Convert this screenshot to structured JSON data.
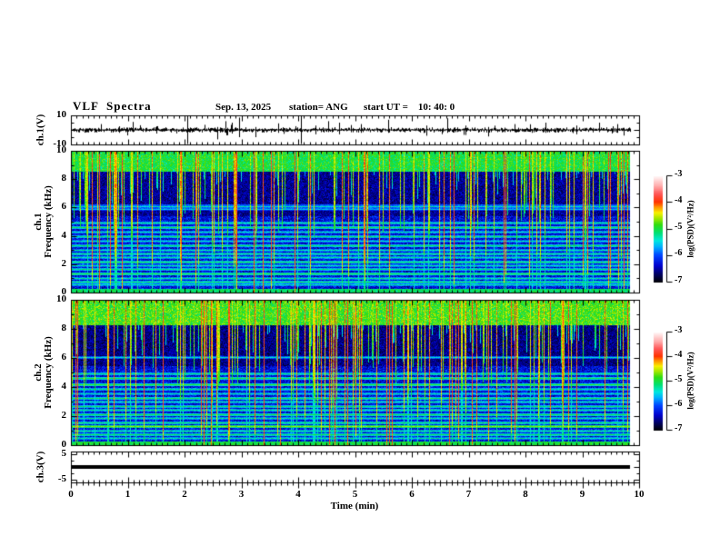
{
  "title": {
    "main": "VLF  Spectra",
    "date": "Sep. 13, 2025",
    "station": "station= ANG",
    "start_ut": "start UT =    10: 40: 0"
  },
  "x_axis": {
    "label": "Time  (min)",
    "ticks": [
      "0",
      "1",
      "2",
      "3",
      "4",
      "5",
      "6",
      "7",
      "8",
      "9",
      "10"
    ],
    "range_min": [
      0,
      10
    ],
    "minor_tick_interval_min": 0.1
  },
  "panels": {
    "ch1_wave": {
      "ylabel": "ch.1(V)",
      "ytick_top": "10",
      "ytick_bottom": "-10"
    },
    "spec1": {
      "ylabel_line1": "ch.1",
      "ylabel_line2": "Frequency (kHz)",
      "yticks": [
        "10",
        "8",
        "6",
        "4",
        "2",
        "0"
      ]
    },
    "spec2": {
      "ylabel_line1": "ch.2",
      "ylabel_line2": "Frequency (kHz)",
      "yticks": [
        "10",
        "8",
        "6",
        "4",
        "2",
        "0"
      ]
    },
    "ch3_wave": {
      "ylabel": "ch.3(V)",
      "ytick_top": "5",
      "ytick_bottom": "-5"
    }
  },
  "colorbars": {
    "label": "log(PSD)(V²/Hz)",
    "ticks": [
      "-3",
      "-4",
      "-5",
      "-6",
      "-7"
    ],
    "range": [
      -7,
      -3
    ]
  },
  "colors": {
    "foreground": "#000000",
    "background": "#ffffff",
    "colormap": [
      [
        -7.0,
        "#000006"
      ],
      [
        -6.75,
        "#000055"
      ],
      [
        -6.4,
        "#0000cc"
      ],
      [
        -6.0,
        "#0044ff"
      ],
      [
        -5.7,
        "#00aaff"
      ],
      [
        -5.45,
        "#00e8e0"
      ],
      [
        -5.15,
        "#00e070"
      ],
      [
        -4.85,
        "#30dd10"
      ],
      [
        -4.6,
        "#a8e800"
      ],
      [
        -4.4,
        "#f8f000"
      ],
      [
        -4.2,
        "#ff9900"
      ],
      [
        -4.0,
        "#ff3300"
      ],
      [
        -3.7,
        "#ff5555"
      ],
      [
        -3.4,
        "#ffaaaa"
      ],
      [
        -3.15,
        "#ffdddd"
      ],
      [
        -3.0,
        "#ffffff"
      ]
    ]
  },
  "chart_data": [
    {
      "type": "line",
      "panel": "ch.1(V)",
      "x_unit": "min",
      "x_range": [
        0,
        9.85
      ],
      "y_range": [
        -10,
        10
      ],
      "description": "broadband VLF voltage trace, noise band centered at 0 V with impulsive sferic spikes",
      "baseline_v": 0,
      "noise_amplitude_v": 1.2,
      "seed": 7,
      "spikes": [
        [
          0.53,
          4,
          -1.2
        ],
        [
          0.85,
          2.5,
          -2
        ],
        [
          1.08,
          5.5,
          -1.5
        ],
        [
          1.5,
          2.5,
          -2.5
        ],
        [
          2.05,
          10,
          -10
        ],
        [
          2.35,
          3.5,
          -1
        ],
        [
          2.58,
          2,
          -6.5
        ],
        [
          2.72,
          6,
          -2
        ],
        [
          2.83,
          5,
          -2.5
        ],
        [
          2.96,
          8.5,
          -5
        ],
        [
          3.25,
          2,
          -5
        ],
        [
          3.65,
          4.5,
          -2
        ],
        [
          4.05,
          10,
          -10
        ],
        [
          4.3,
          3,
          -3
        ],
        [
          4.52,
          6,
          -1.5
        ],
        [
          4.72,
          5,
          -3
        ],
        [
          5.1,
          4,
          -2
        ],
        [
          5.58,
          7,
          -2
        ],
        [
          6.25,
          3,
          -4
        ],
        [
          6.62,
          8,
          -2
        ],
        [
          6.95,
          3,
          -3.5
        ],
        [
          7.35,
          2,
          -4.5
        ],
        [
          7.8,
          4,
          -1.5
        ],
        [
          8.35,
          5,
          -2
        ],
        [
          8.9,
          3,
          -3
        ],
        [
          9.3,
          5,
          -1.5
        ],
        [
          9.62,
          4,
          -2
        ]
      ]
    },
    {
      "type": "heatmap",
      "panel": "ch.1 spectrogram",
      "x_range": [
        0,
        9.85
      ],
      "y_range": [
        0,
        10
      ],
      "y_unit": "kHz",
      "value_unit": "log(PSD)(V²/Hz)",
      "value_range": [
        -7,
        -3
      ],
      "seed": 42,
      "streak_density": 0.38,
      "red_streak_density": 0.013,
      "bands": [
        [
          8.6,
          10.01,
          -5.0,
          0.45
        ],
        [
          5.4,
          8.6,
          -6.55,
          0.4
        ],
        [
          0.25,
          5.4,
          -6.3,
          0.5
        ],
        [
          0.0,
          0.25,
          -5.1,
          0.3
        ]
      ],
      "hlines": [
        [
          6.1,
          -5.35,
          2
        ],
        [
          5.95,
          -5.6,
          1
        ],
        [
          5.0,
          -5.2,
          1
        ],
        [
          4.65,
          -5.05,
          1
        ],
        [
          4.35,
          -5.3,
          1
        ],
        [
          4.0,
          -5.15,
          1
        ],
        [
          3.65,
          -5.35,
          1
        ],
        [
          3.35,
          -5.1,
          1
        ],
        [
          3.05,
          -5.3,
          1
        ],
        [
          2.75,
          -5.15,
          1
        ],
        [
          2.5,
          -5.25,
          1
        ],
        [
          2.2,
          -5.05,
          1
        ],
        [
          1.95,
          -5.3,
          1
        ],
        [
          1.65,
          -5.15,
          1
        ],
        [
          1.35,
          -4.95,
          1
        ],
        [
          1.05,
          -5.25,
          1
        ],
        [
          0.8,
          -5.1,
          1
        ],
        [
          0.55,
          -5.3,
          1
        ]
      ]
    },
    {
      "type": "heatmap",
      "panel": "ch.2 spectrogram",
      "x_range": [
        0,
        9.85
      ],
      "y_range": [
        0,
        10
      ],
      "y_unit": "kHz",
      "value_unit": "log(PSD)(V²/Hz)",
      "value_range": [
        -7,
        -3
      ],
      "seed": 1234,
      "streak_density": 0.42,
      "red_streak_density": 0.016,
      "bands": [
        [
          8.3,
          10.01,
          -4.85,
          0.5
        ],
        [
          5.5,
          8.3,
          -6.6,
          0.4
        ],
        [
          0.25,
          5.5,
          -6.3,
          0.5
        ],
        [
          0.0,
          0.25,
          -5.0,
          0.3
        ]
      ],
      "hlines": [
        [
          6.1,
          -5.4,
          1
        ],
        [
          5.0,
          -5.15,
          1
        ],
        [
          4.65,
          -5.0,
          1
        ],
        [
          4.2,
          -4.9,
          1
        ],
        [
          3.9,
          -5.2,
          1
        ],
        [
          3.6,
          -5.3,
          1
        ],
        [
          3.3,
          -5.05,
          1
        ],
        [
          3.0,
          -5.25,
          1
        ],
        [
          2.7,
          -5.1,
          1
        ],
        [
          2.45,
          -5.2,
          1
        ],
        [
          2.15,
          -5.0,
          1
        ],
        [
          1.9,
          -5.25,
          1
        ],
        [
          1.6,
          -5.1,
          1
        ],
        [
          1.3,
          -4.65,
          1
        ],
        [
          1.0,
          -5.2,
          1
        ],
        [
          0.75,
          -5.05,
          1
        ],
        [
          0.5,
          -5.25,
          1
        ]
      ]
    },
    {
      "type": "line",
      "panel": "ch.3(V)",
      "x_range": [
        0,
        9.85
      ],
      "y_range": [
        -5,
        5
      ],
      "description": "flat thick trace at constant 0 V",
      "value_v": 0
    }
  ]
}
